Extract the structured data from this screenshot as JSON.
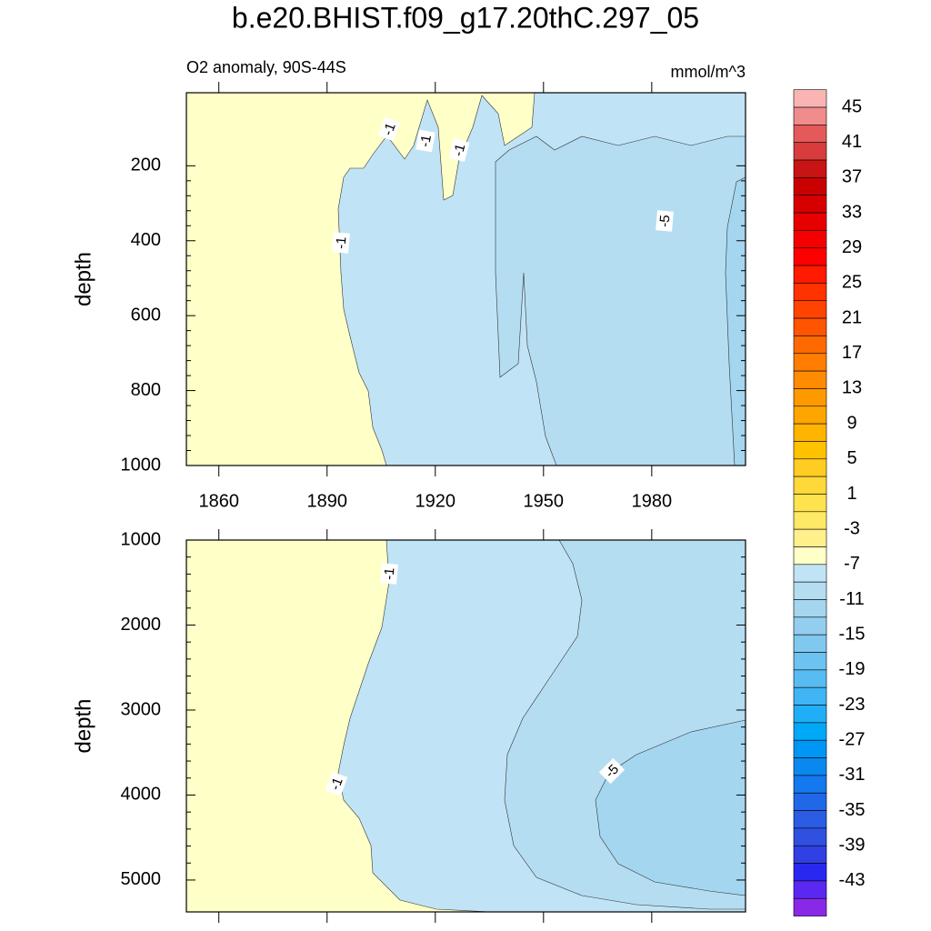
{
  "title": "b.e20.BHIST.f09_g17.20thC.297_05",
  "colorbar": {
    "ticks": [
      45,
      41,
      37,
      33,
      29,
      25,
      21,
      17,
      13,
      9,
      5,
      1,
      -3,
      -7,
      -11,
      -15,
      -19,
      -23,
      -27,
      -31,
      -35,
      -39,
      -43
    ],
    "colors": [
      "#fab4b4",
      "#f08c8c",
      "#e45a5a",
      "#d83c3c",
      "#c81414",
      "#c80000",
      "#d70000",
      "#e60000",
      "#f50000",
      "#ff0000",
      "#ff1a00",
      "#ff3300",
      "#ff4400",
      "#ff5500",
      "#ff6a00",
      "#ff7d00",
      "#ff8c00",
      "#ff9900",
      "#ffa500",
      "#ffb400",
      "#ffc200",
      "#ffcc22",
      "#ffd83a",
      "#ffe34e",
      "#ffe866",
      "#fff08c",
      "#ffffc8",
      "#c0e4f5",
      "#b4ddf2",
      "#a4d6f0",
      "#94ceee",
      "#80c8ee",
      "#6cc2f0",
      "#58bcf2",
      "#40b4f4",
      "#20aef6",
      "#00a8f8",
      "#0096f5",
      "#0a88f0",
      "#1478ee",
      "#2068e8",
      "#2a5ce4",
      "#3050e0",
      "#3040e4",
      "#2828f0",
      "#5a28f0",
      "#8a28e8"
    ]
  },
  "chart_data": [
    {
      "type": "contour",
      "subtitle": "O2 anomaly, 90S-44S",
      "units": "mmol/m^3",
      "ylabel": "depth",
      "xlim": [
        1851,
        2006
      ],
      "xticks": [
        1860,
        1890,
        1920,
        1950,
        1980
      ],
      "ylim": [
        5,
        1000
      ],
      "yticks": [
        200,
        400,
        600,
        800,
        1000
      ],
      "contour_labels": [
        -1,
        -1,
        -1,
        -1,
        -5
      ]
    },
    {
      "type": "contour",
      "ylabel": "depth",
      "xlim": [
        1851,
        2006
      ],
      "ylim": [
        1000,
        5375
      ],
      "yticks": [
        1000,
        2000,
        3000,
        4000,
        5000
      ],
      "contour_labels": [
        -1,
        -1,
        -5
      ]
    }
  ]
}
